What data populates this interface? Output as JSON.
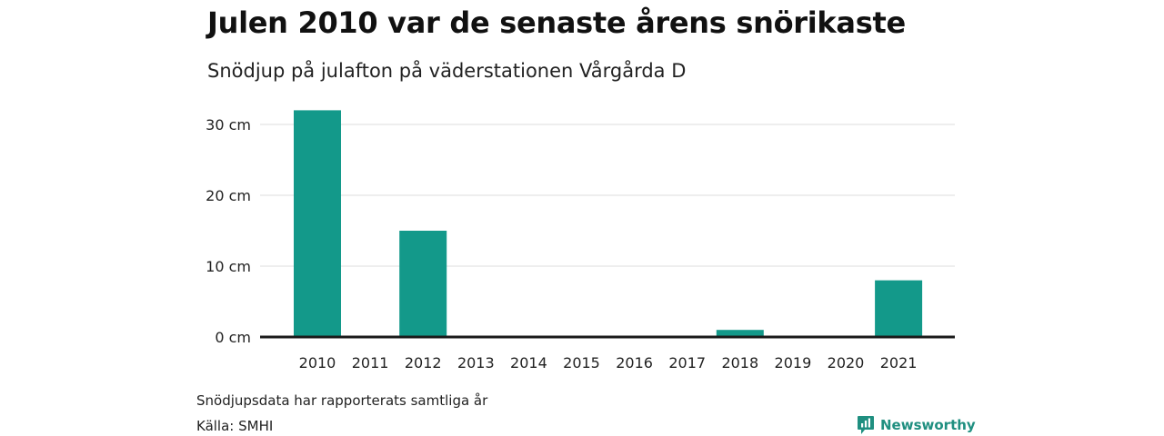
{
  "header": {
    "title": "Julen 2010 var de senaste årens snörikaste",
    "subtitle": "Snödjup på julafton på väderstationen Vårgårda D"
  },
  "footer": {
    "note": "Snödjupsdata har rapporterats samtliga år",
    "source": "Källa: SMHI",
    "brand": "Newsworthy"
  },
  "colors": {
    "bar": "#13998a",
    "brand": "#1f8f80",
    "axis": "#1a1a1a",
    "grid": "#dddddd"
  },
  "icons": {
    "brand": "newsworthy-logo-icon"
  },
  "chart_data": {
    "type": "bar",
    "categories": [
      "2010",
      "2011",
      "2012",
      "2013",
      "2014",
      "2015",
      "2016",
      "2017",
      "2018",
      "2019",
      "2020",
      "2021"
    ],
    "values": [
      32,
      0,
      15,
      0,
      0,
      0,
      0,
      0,
      1,
      0,
      0,
      8
    ],
    "ylim": [
      0,
      30
    ],
    "yticks": [
      0,
      10,
      20,
      30
    ],
    "ytick_labels": [
      "0 cm",
      "10 cm",
      "20 cm",
      "30 cm"
    ],
    "grid": true,
    "legend": "none",
    "title": "Julen 2010 var de senaste årens snörikaste",
    "subtitle": "Snödjup på julafton på väderstationen Vårgårda D",
    "xlabel": "",
    "ylabel": ""
  }
}
